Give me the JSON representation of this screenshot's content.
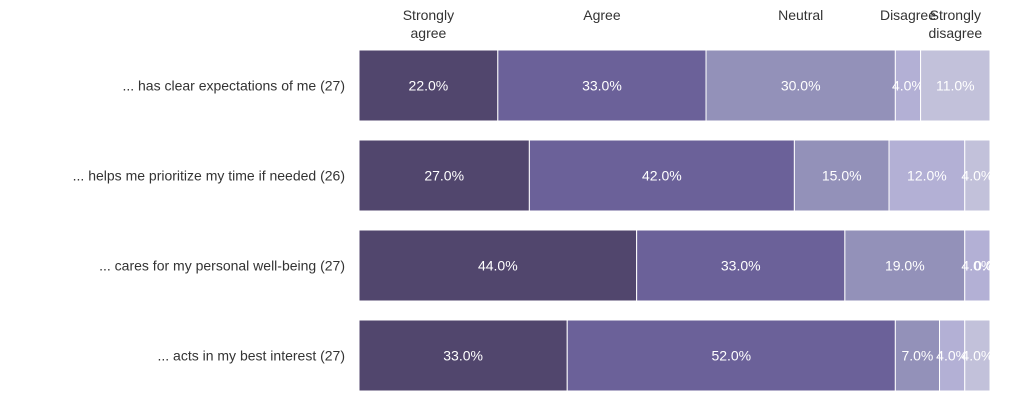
{
  "chart_data": {
    "type": "bar",
    "orientation": "horizontal",
    "stacked": true,
    "normalized_to_percent": true,
    "legend_position": "top",
    "colors": [
      "#51466d",
      "#6b6199",
      "#9391b9",
      "#b3b0d5",
      "#c2c1da"
    ],
    "headers": [
      [
        "Strongly",
        "agree"
      ],
      [
        "Agree"
      ],
      [
        "Neutral"
      ],
      [
        "Disagree"
      ],
      [
        "Strongly",
        "disagree"
      ]
    ],
    "rows": [
      {
        "label": "... has clear expectations of me (27)",
        "values": [
          22.0,
          33.0,
          30.0,
          4.0,
          11.0
        ],
        "labels": [
          "22.0%",
          "33.0%",
          "30.0%",
          "4.0%",
          "11.0%"
        ]
      },
      {
        "label": "... helps me prioritize my time if needed (26)",
        "values": [
          27.0,
          42.0,
          15.0,
          12.0,
          4.0
        ],
        "labels": [
          "27.0%",
          "42.0%",
          "15.0%",
          "12.0%",
          "4.0%"
        ]
      },
      {
        "label": "... cares for my personal well-being (27)",
        "values": [
          44.0,
          33.0,
          19.0,
          4.0,
          0.0
        ],
        "labels": [
          "44.0%",
          "33.0%",
          "19.0%",
          "4.0%",
          "0.0%"
        ]
      },
      {
        "label": "... acts in my best interest (27)",
        "values": [
          33.0,
          52.0,
          7.0,
          4.0,
          4.0
        ],
        "labels": [
          "33.0%",
          "52.0%",
          "7.0%",
          "4.0%",
          "4.0%"
        ]
      }
    ]
  }
}
